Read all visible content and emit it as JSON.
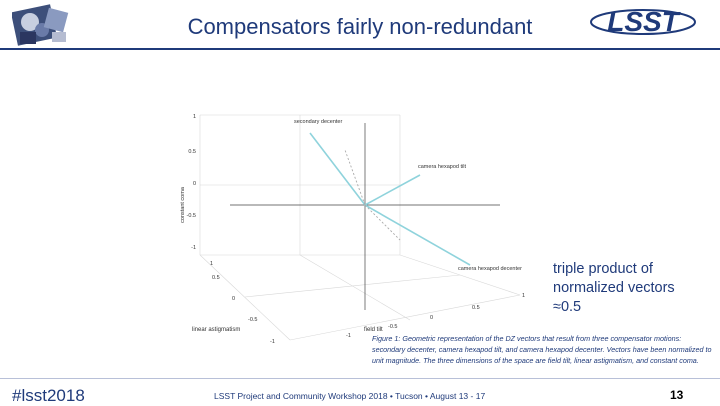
{
  "slide": {
    "title": "Compensators fairly non-redundant",
    "side_note": "triple product of normalized vectors ≈0.5",
    "caption_label": "Figure 1:",
    "caption_text": "Geometric representation of the DZ vectors that result from three compensator motions: secondary decenter, camera hexapod tilt, and camera hexapod decenter. Vectors have been normalized to unit magnitude. The three dimensions of the space are field tilt, linear astigmatism, and constant coma.",
    "page_number": "13"
  },
  "footer": {
    "hashtag": "#lsst2018",
    "workshop": "LSST Project and Community Workshop 2018 • Tucson • August 13 - 17"
  },
  "logos": {
    "left": "lsst-collage-logo",
    "right_text": "LSST"
  },
  "plot": {
    "z_axis_label": "constant coma",
    "x_axis_label": "linear astigmatism",
    "y_axis_label": "field tilt",
    "z_ticks": [
      "1",
      "0.5",
      "0",
      "-0.5",
      "-1"
    ],
    "x_ticks": [
      "1",
      "0.5",
      "0",
      "-0.5",
      "-1"
    ],
    "y_ticks": [
      "-1",
      "-0.5",
      "0",
      "0.5",
      "1"
    ],
    "vectors": [
      {
        "label": "secondary decenter"
      },
      {
        "label": "camera hexapod tilt"
      },
      {
        "label": "camera hexapod decenter"
      }
    ]
  },
  "colors": {
    "title": "#1f3a7a",
    "vector": "#8fd3dc",
    "axis": "#333333"
  }
}
